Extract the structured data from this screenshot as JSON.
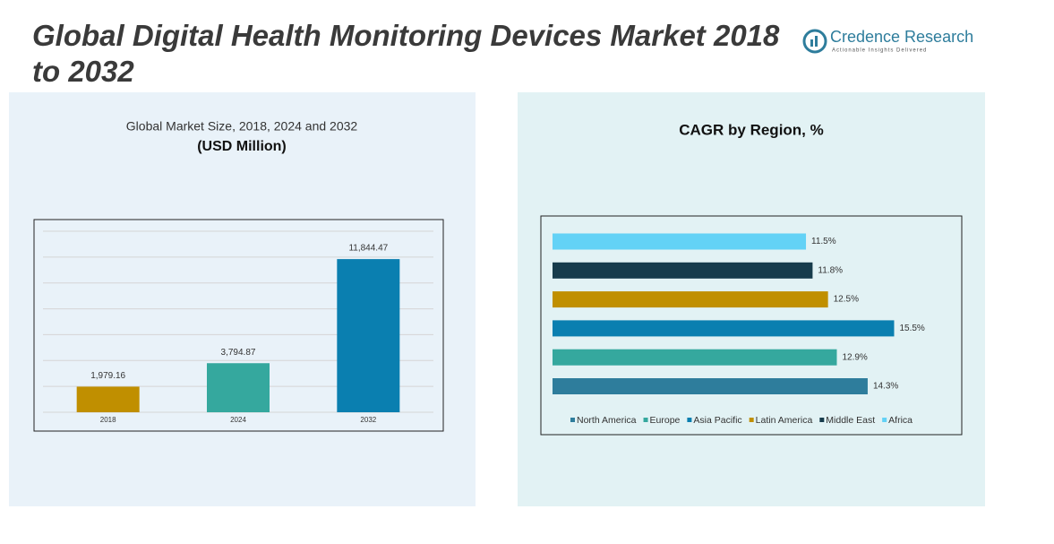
{
  "header": {
    "title": "Global Digital Health Monitoring Devices Market 2018 to 2032",
    "brand": "Credence Research",
    "tagline": "Actionable Insights Delivered"
  },
  "chart_data": [
    {
      "type": "bar",
      "title": "Global Market Size, 2018, 2024 and 2032",
      "subtitle": "(USD Million)",
      "categories": [
        "2018",
        "2024",
        "2032"
      ],
      "values": [
        1979.16,
        3794.87,
        11844.47
      ],
      "value_labels": [
        "1,979.16",
        "3,794.87",
        "11,844.47"
      ],
      "colors": [
        "#c08f00",
        "#35a89e",
        "#0a7fb0"
      ],
      "ylim": [
        0,
        14000
      ],
      "yticks": [
        0,
        2000,
        4000,
        6000,
        8000,
        10000,
        12000,
        14000
      ],
      "ytick_labels": false,
      "grid": true
    },
    {
      "type": "hbar",
      "title": "CAGR by Region, %",
      "xlim": [
        0,
        18
      ],
      "legend": "bottom",
      "series": [
        {
          "name": "North America",
          "color": "#2e7d9c",
          "values": [
            14.3
          ],
          "value_labels": [
            "14.3%"
          ]
        },
        {
          "name": "Europe",
          "color": "#35a89e",
          "values": [
            12.9
          ],
          "value_labels": [
            "12.9%"
          ]
        },
        {
          "name": "Asia Pacific",
          "color": "#0a7fb0",
          "values": [
            15.5
          ],
          "value_labels": [
            "15.5%"
          ]
        },
        {
          "name": "Latin America",
          "color": "#c08f00",
          "values": [
            12.5
          ],
          "value_labels": [
            "12.5%"
          ]
        },
        {
          "name": "Middle East",
          "color": "#173c4c",
          "values": [
            11.8
          ],
          "value_labels": [
            "11.8%"
          ]
        },
        {
          "name": "Africa",
          "color": "#63d2f6",
          "values": [
            11.5
          ],
          "value_labels": [
            "11.5%"
          ]
        }
      ]
    }
  ]
}
